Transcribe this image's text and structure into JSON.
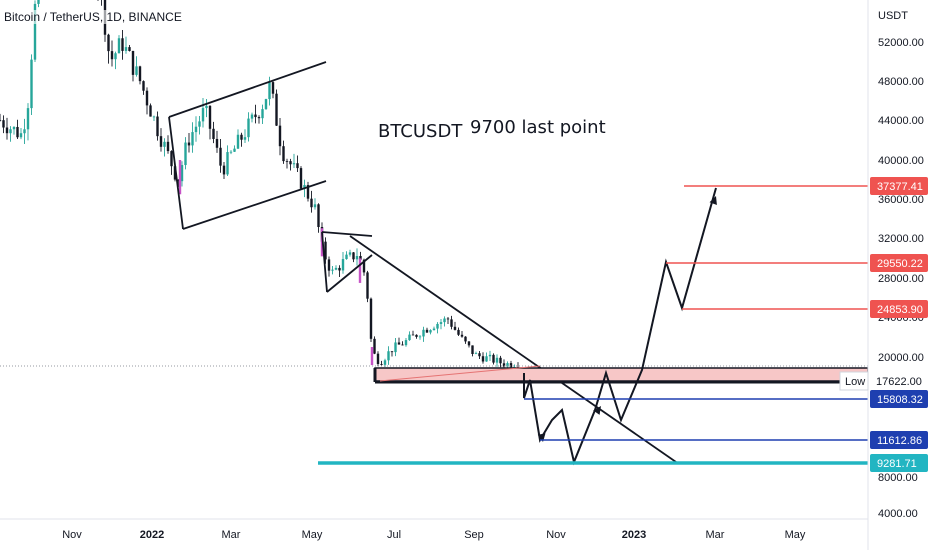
{
  "chart_data": {
    "type": "candlestick",
    "title": "Bitcoin / TetherUS, 1D, BINANCE",
    "y_unit": "USDT",
    "annotation_main": "BTCUSDT",
    "annotation_sub": "9700 last point",
    "y_ticks": [
      "52000.00",
      "48000.00",
      "44000.00",
      "40000.00",
      "36000.00",
      "32000.00",
      "28000.00",
      "24000.00",
      "20000.00",
      "8000.00",
      "4000.00"
    ],
    "x_ticks": [
      "Nov",
      "2022",
      "Mar",
      "May",
      "Jul",
      "Sep",
      "Nov",
      "2023",
      "Mar",
      "May"
    ],
    "price_levels": [
      {
        "label": "37377.41",
        "value": 37377.41,
        "color": "#ef5350"
      },
      {
        "label": "29550.22",
        "value": 29550.22,
        "color": "#ef5350"
      },
      {
        "label": "24853.90",
        "value": 24853.9,
        "color": "#ef5350"
      },
      {
        "label": "17622.00",
        "value": 17622.0,
        "color": "#131722",
        "tag": "Low"
      },
      {
        "label": "15808.32",
        "value": 15808.32,
        "color": "#1e3fb0"
      },
      {
        "label": "11612.86",
        "value": 11612.86,
        "color": "#1e3fb0"
      },
      {
        "label": "9281.71",
        "value": 9281.71,
        "color": "#22b5c2"
      }
    ],
    "series": [
      {
        "x": [
          "2021-09",
          "2021-10",
          "2021-11",
          "2021-12",
          "2022-01",
          "2022-02",
          "2022-03",
          "2022-04",
          "2022-05",
          "2022-06",
          "2022-07",
          "2022-08",
          "2022-09",
          "2022-10"
        ],
        "y": [
          44000,
          56000,
          58000,
          47000,
          38000,
          40000,
          45000,
          40000,
          30000,
          19000,
          23000,
          21000,
          19500,
          19300
        ]
      }
    ]
  }
}
